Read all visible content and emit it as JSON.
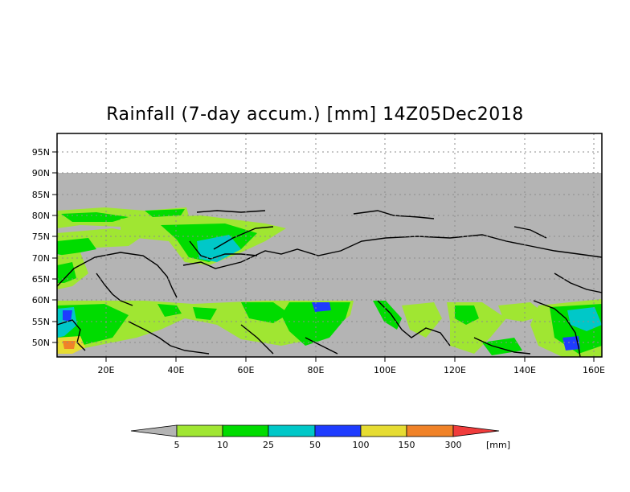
{
  "title": "Rainfall (7-day accum.) [mm] 14Z05Dec2018",
  "map": {
    "lat_labels": [
      "95N",
      "90N",
      "85N",
      "80N",
      "75N",
      "70N",
      "65N",
      "60N",
      "55N",
      "50N"
    ],
    "lon_labels": [
      "20E",
      "40E",
      "60E",
      "80E",
      "100E",
      "120E",
      "140E",
      "160E"
    ],
    "no_data_color": "#b4b4b4"
  },
  "legend": {
    "unit": "[mm]",
    "bins": [
      {
        "label": "5",
        "color": "#b4b4b4"
      },
      {
        "label": "10",
        "color": "#a0e632"
      },
      {
        "label": "25",
        "color": "#00dc00"
      },
      {
        "label": "50",
        "color": "#00c8c8"
      },
      {
        "label": "100",
        "color": "#1e3cff"
      },
      {
        "label": "150",
        "color": "#e6dc32"
      },
      {
        "label": "300",
        "color": "#f08228"
      },
      {
        "label": "",
        "color": "#f03c3c"
      }
    ]
  }
}
